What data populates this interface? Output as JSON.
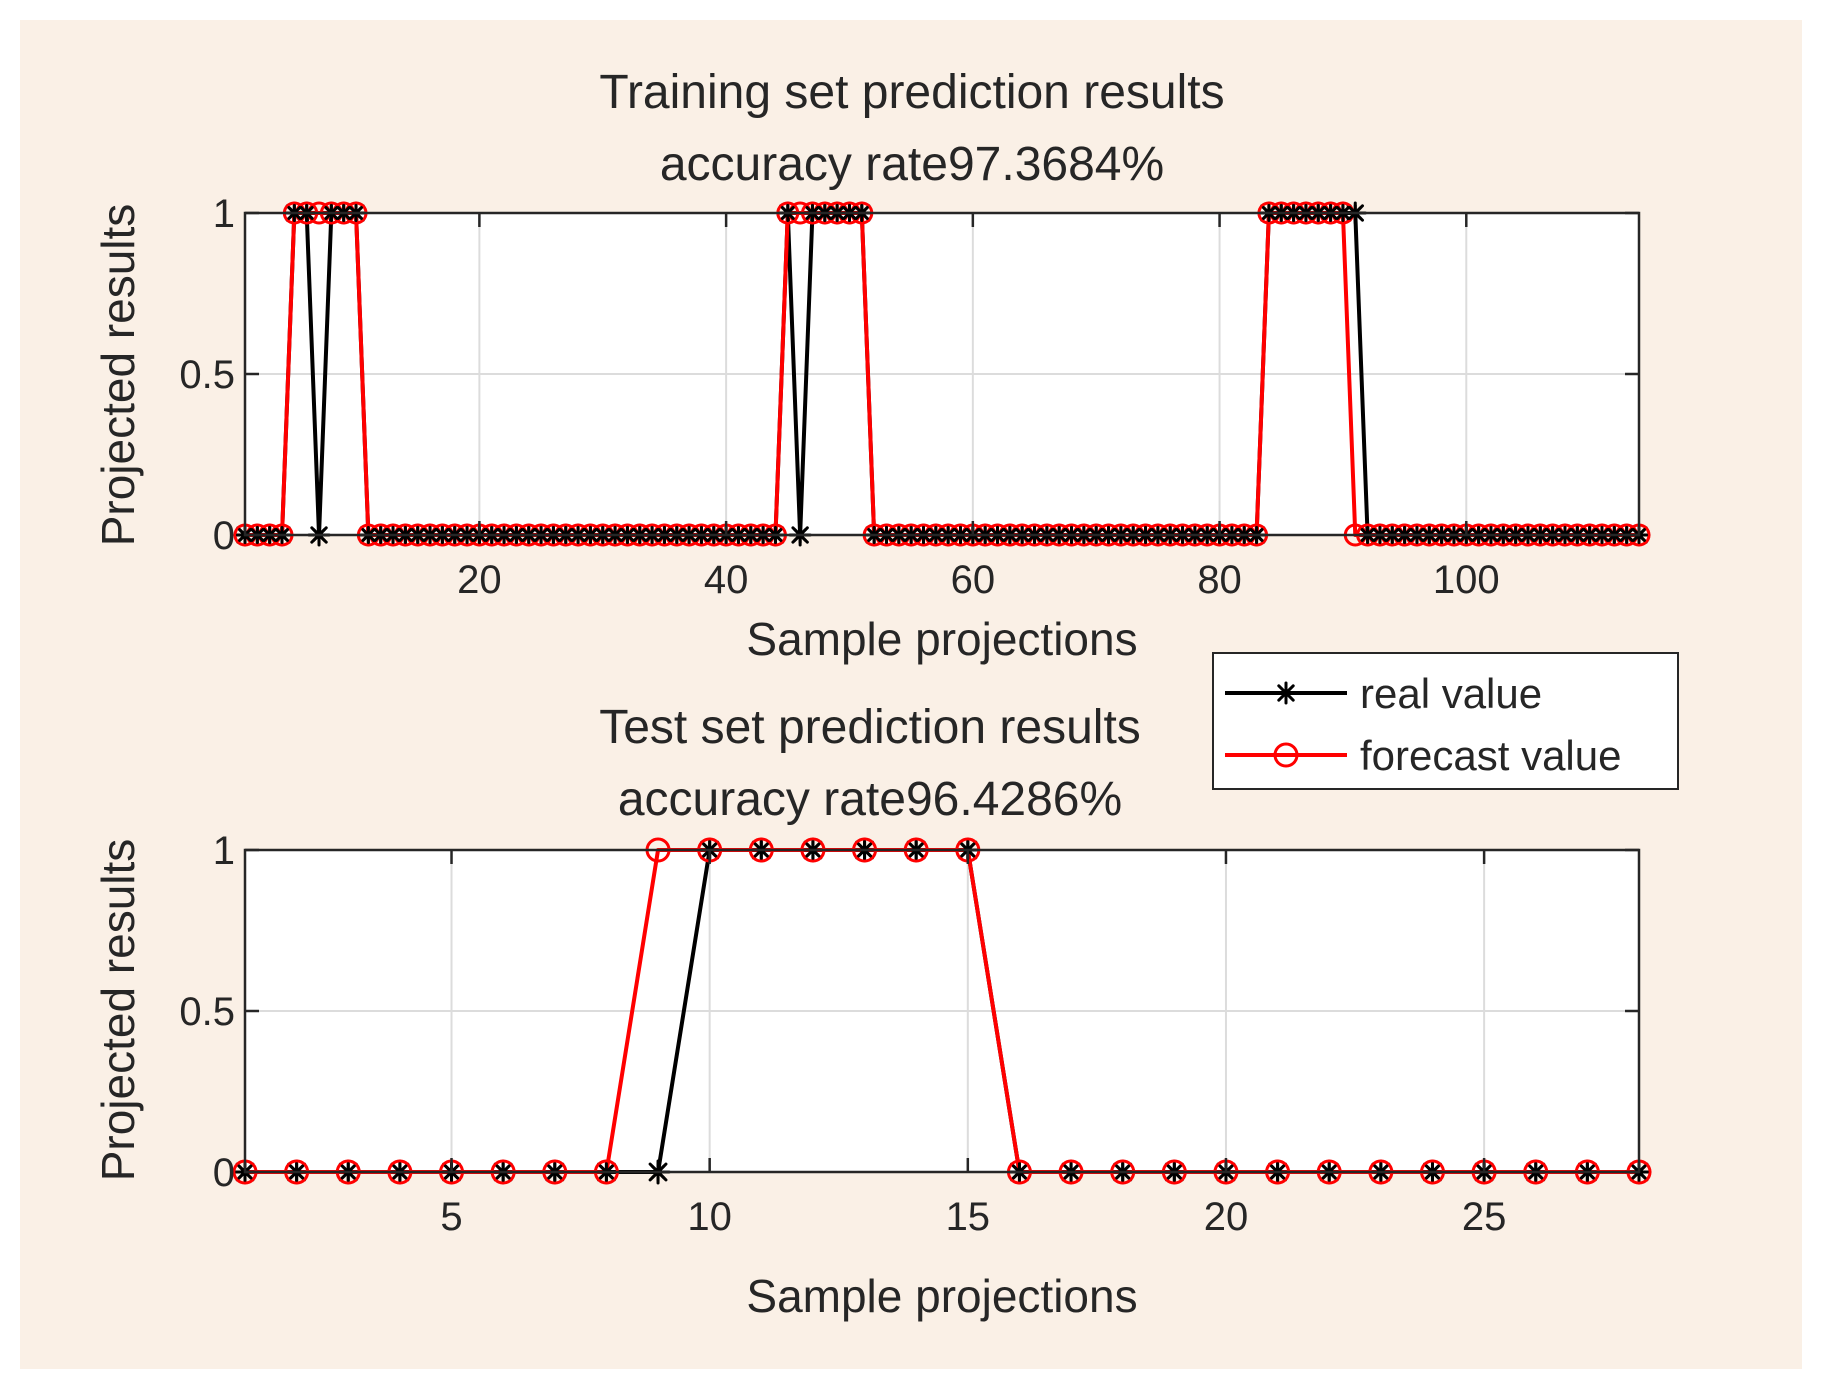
{
  "colors": {
    "figure_background": "#FAF0E6",
    "axes_background": "#FFFFFF",
    "grid": "#DCDCDC",
    "axis": "#262626",
    "real": "#000000",
    "forecast": "#FF0000"
  },
  "legend": {
    "entries": [
      "real value",
      "forecast value"
    ],
    "placement": "between-subplots-right"
  },
  "chart_data": [
    {
      "type": "line",
      "title_line1": "Training set prediction results",
      "title_line2": "accuracy rate97.3684%",
      "xlabel": "Sample projections",
      "ylabel": "Projected results",
      "xlim": [
        1,
        114
      ],
      "ylim": [
        0,
        1
      ],
      "xticks": [
        20,
        40,
        60,
        80,
        100
      ],
      "xtick_labels": [
        "20",
        "40",
        "60",
        "80",
        "100"
      ],
      "yticks": [
        0,
        0.5,
        1
      ],
      "ytick_labels": [
        "0",
        "0.5",
        "1"
      ],
      "grid": true,
      "series": [
        {
          "name": "real value",
          "marker": "asterisk",
          "ones": [
            5,
            6,
            8,
            9,
            10,
            45,
            47,
            48,
            49,
            50,
            51,
            84,
            85,
            86,
            87,
            88,
            89,
            90,
            91
          ]
        },
        {
          "name": "forecast value",
          "marker": "circle",
          "ones": [
            5,
            6,
            7,
            8,
            9,
            10,
            45,
            46,
            47,
            48,
            49,
            50,
            51,
            84,
            85,
            86,
            87,
            88,
            89,
            90
          ]
        }
      ]
    },
    {
      "type": "line",
      "title_line1": "Test set prediction results",
      "title_line2": "accuracy rate96.4286%",
      "xlabel": "Sample projections",
      "ylabel": "Projected results",
      "xlim": [
        1,
        28
      ],
      "ylim": [
        0,
        1
      ],
      "xticks": [
        5,
        10,
        15,
        20,
        25
      ],
      "xtick_labels": [
        "5",
        "10",
        "15",
        "20",
        "25"
      ],
      "yticks": [
        0,
        0.5,
        1
      ],
      "ytick_labels": [
        "0",
        "0.5",
        "1"
      ],
      "grid": true,
      "series": [
        {
          "name": "real value",
          "marker": "asterisk",
          "ones": [
            10,
            11,
            12,
            13,
            14,
            15
          ]
        },
        {
          "name": "forecast value",
          "marker": "circle",
          "ones": [
            9,
            10,
            11,
            12,
            13,
            14,
            15
          ]
        }
      ]
    }
  ]
}
